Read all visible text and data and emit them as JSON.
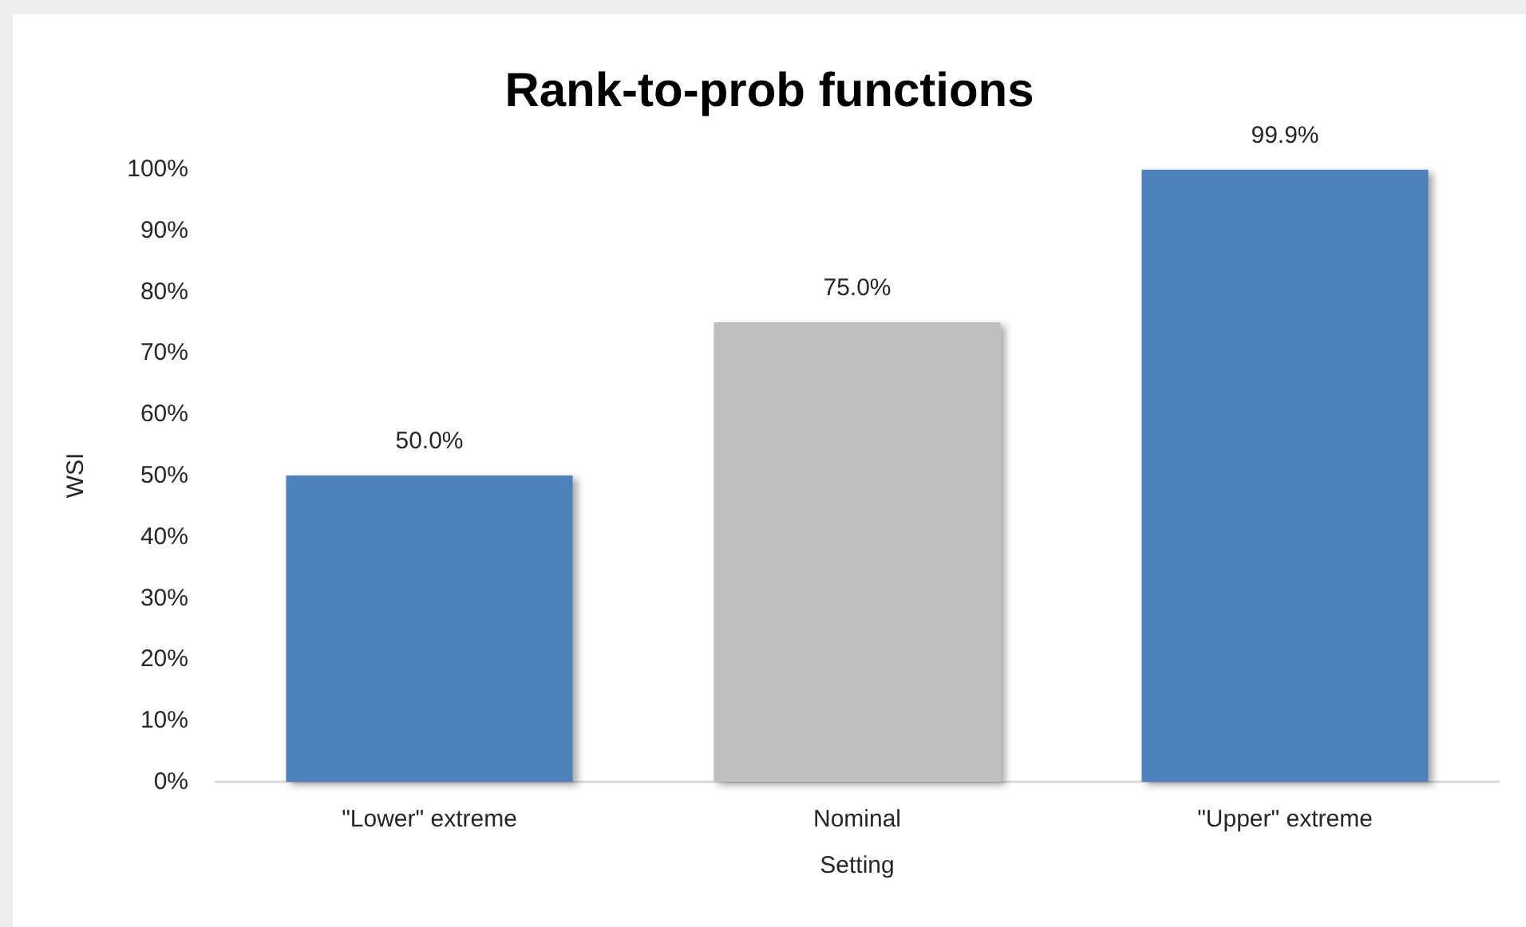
{
  "chart_data": {
    "type": "bar",
    "title": "Rank-to-prob functions",
    "xlabel": "Setting",
    "ylabel": "WSI",
    "categories": [
      "\"Lower\" extreme",
      "Nominal",
      "\"Upper\" extreme"
    ],
    "values": [
      50.0,
      75.0,
      99.9
    ],
    "colors": [
      "#4f81bd",
      "#bfbfbf",
      "#4f81bd"
    ],
    "value_labels": [
      "50.0%",
      "75.0%",
      "99.9%"
    ],
    "ylim": [
      0,
      100
    ],
    "yticks": [
      {
        "value": 0,
        "label": "0%"
      },
      {
        "value": 10,
        "label": "10%"
      },
      {
        "value": 20,
        "label": "20%"
      },
      {
        "value": 30,
        "label": "30%"
      },
      {
        "value": 40,
        "label": "40%"
      },
      {
        "value": 50,
        "label": "50%"
      },
      {
        "value": 60,
        "label": "60%"
      },
      {
        "value": 70,
        "label": "70%"
      },
      {
        "value": 80,
        "label": "80%"
      },
      {
        "value": 90,
        "label": "90%"
      },
      {
        "value": 100,
        "label": "100%"
      }
    ]
  }
}
